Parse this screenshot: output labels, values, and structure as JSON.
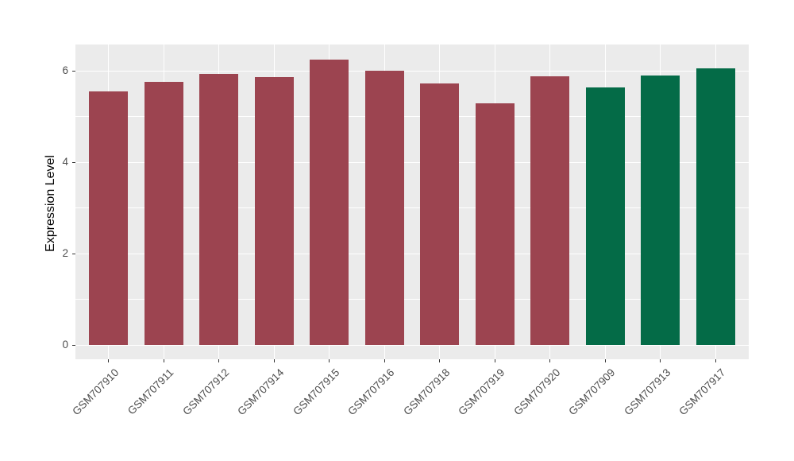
{
  "chart_data": {
    "type": "bar",
    "title": "",
    "xlabel": "",
    "ylabel": "Expression Level",
    "categories": [
      "GSM707910",
      "GSM707911",
      "GSM707912",
      "GSM707914",
      "GSM707915",
      "GSM707916",
      "GSM707918",
      "GSM707919",
      "GSM707920",
      "GSM707909",
      "GSM707913",
      "GSM707917"
    ],
    "values": [
      5.55,
      5.76,
      5.94,
      5.87,
      6.25,
      6.0,
      5.73,
      5.3,
      5.88,
      5.64,
      5.9,
      6.06
    ],
    "groups": [
      "red",
      "red",
      "red",
      "red",
      "red",
      "red",
      "red",
      "red",
      "red",
      "green",
      "green",
      "green"
    ],
    "group_colors": {
      "red": "#9C4450",
      "green": "#046B47"
    },
    "y_ticks": [
      0,
      2,
      4,
      6
    ],
    "y_minor_ticks": [
      1,
      3,
      5
    ],
    "ylim": [
      -0.31,
      6.58
    ],
    "bar_width_frac": 0.7,
    "legend": "none",
    "grid": "on",
    "panel_bg": "#EBEBEB",
    "grid_color": "#FFFFFF",
    "tick_mark_color": "#333333",
    "tick_label_color": "#4D4D4D",
    "axis_title_color": "#000000"
  }
}
